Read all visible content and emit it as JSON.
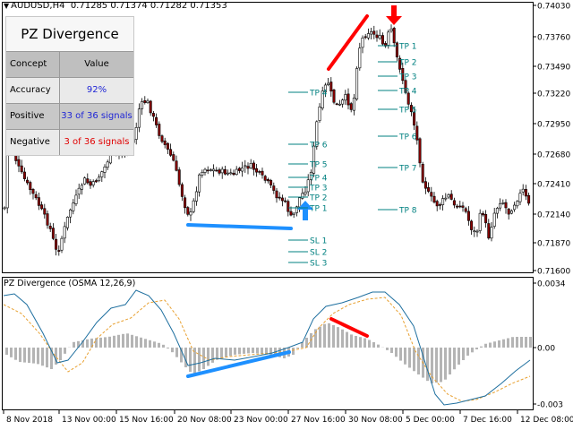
{
  "header": {
    "symbol": "AUDUSD,H4",
    "ohlc": "0.71285 0.71374 0.71282 0.71353"
  },
  "panel": {
    "title": "PZ Divergence",
    "col_concept": "Concept",
    "col_value": "Value",
    "rows": [
      {
        "concept": "Accuracy",
        "value": "92%"
      },
      {
        "concept": "Positive",
        "value": "33 of 36 signals"
      },
      {
        "concept": "Negative",
        "value": "3 of 36 signals"
      }
    ]
  },
  "indicator": {
    "title": "PZ Divergence (OSMA 12,26,9)"
  },
  "chart_data": {
    "type": "candlestick",
    "price_axis_labels": [
      "0.74030",
      "0.73760",
      "0.73490",
      "0.73220",
      "0.72950",
      "0.72680",
      "0.72410",
      "0.72140",
      "0.71870",
      "0.71600"
    ],
    "osc_axis_labels": [
      "0.0034",
      "0.00",
      "-0.003"
    ],
    "time_labels": [
      "8 Nov 2018",
      "13 Nov 00:00",
      "15 Nov 16:00",
      "20 Nov 08:00",
      "23 Nov 00:00",
      "27 Nov 16:00",
      "30 Nov 08:00",
      "5 Dec 00:00",
      "7 Dec 16:00",
      "12 Dec 08:00"
    ],
    "tp_left": [
      "TP 4",
      "TP 6",
      "TP 5",
      "TP 4",
      "TP 3",
      "TP 2",
      "TP 1"
    ],
    "sl_left": [
      "SL 1",
      "SL 2",
      "SL 3"
    ],
    "tp_right": [
      "TP 1",
      "TP 2",
      "TP 3",
      "TP 4",
      "TP 5",
      "TP 6",
      "TP 7",
      "TP 8"
    ],
    "colors": {
      "up": "#1e90ff",
      "down": "#ff0000",
      "levels": "#008080",
      "bull": "#000000",
      "bear": "#8b0000"
    }
  }
}
